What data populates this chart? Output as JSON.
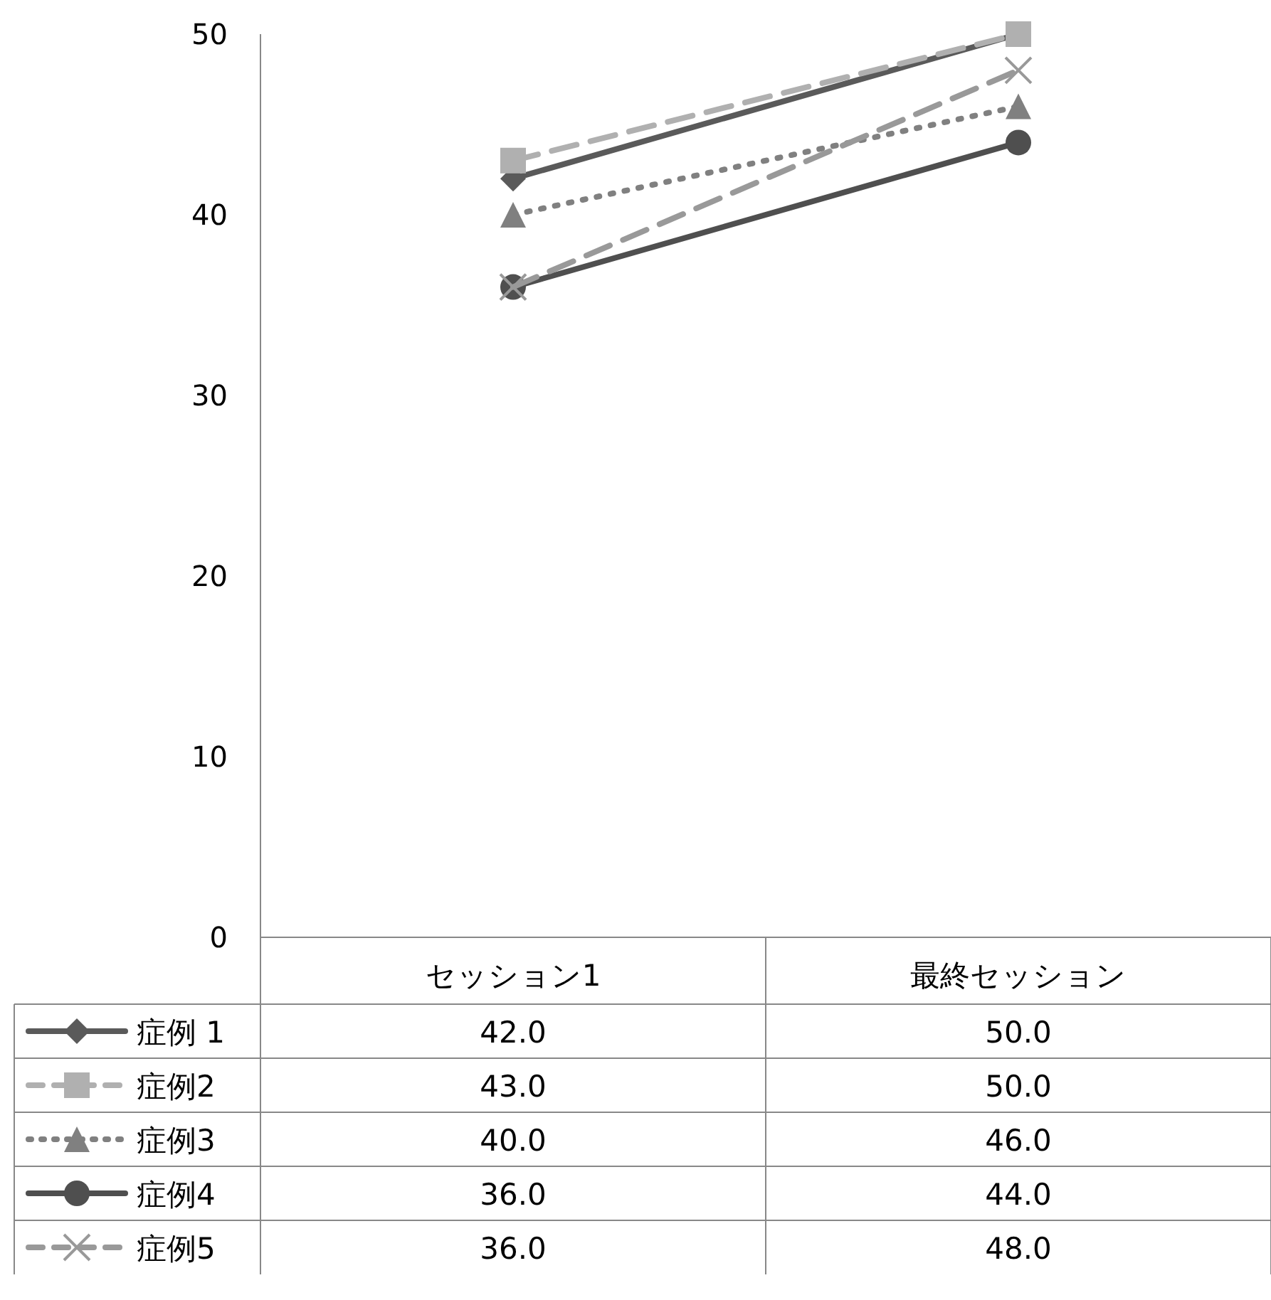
{
  "chart_data": {
    "type": "line",
    "categories": [
      "セッション1",
      "最終セッション"
    ],
    "series": [
      {
        "name": "症例 1",
        "color": "#5a5a5a",
        "values": [
          42.0,
          50.0
        ],
        "value_labels": [
          "42.0",
          "50.0"
        ],
        "marker": "diamond",
        "line_style": "solid"
      },
      {
        "name": "症例2",
        "color": "#b0b0b0",
        "values": [
          43.0,
          50.0
        ],
        "value_labels": [
          "43.0",
          "50.0"
        ],
        "marker": "square",
        "line_style": "dashed"
      },
      {
        "name": "症例3",
        "color": "#808080",
        "values": [
          40.0,
          46.0
        ],
        "value_labels": [
          "40.0",
          "46.0"
        ],
        "marker": "triangle",
        "line_style": "dotted"
      },
      {
        "name": "症例4",
        "color": "#4f4f4f",
        "values": [
          36.0,
          44.0
        ],
        "value_labels": [
          "36.0",
          "44.0"
        ],
        "marker": "circle",
        "line_style": "solid"
      },
      {
        "name": "症例5",
        "color": "#999999",
        "values": [
          36.0,
          48.0
        ],
        "value_labels": [
          "36.0",
          "48.0"
        ],
        "marker": "cross",
        "line_style": "dashed"
      }
    ],
    "ylim": [
      0,
      50
    ],
    "yticks": [
      0,
      10,
      20,
      30,
      40,
      50
    ],
    "grid": false,
    "legend": "bottom left"
  }
}
